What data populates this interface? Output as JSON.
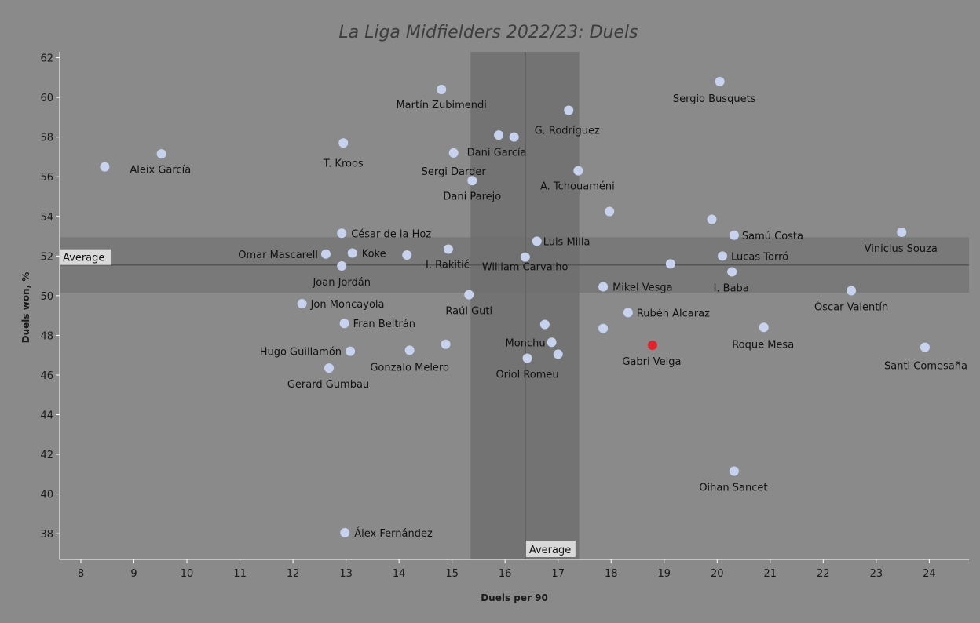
{
  "chart_data": {
    "type": "scatter",
    "title": "La Liga Midfielders 2022/23: Duels",
    "xlabel": "Duels per 90",
    "ylabel": "Duels won, %",
    "xlim": [
      7.6,
      24.75
    ],
    "ylim": [
      36.7,
      62.3
    ],
    "xticks": [
      8,
      9,
      10,
      11,
      12,
      13,
      14,
      15,
      16,
      17,
      18,
      19,
      20,
      21,
      22,
      23,
      24
    ],
    "yticks": [
      38,
      40,
      42,
      44,
      46,
      48,
      50,
      52,
      54,
      56,
      58,
      60,
      62
    ],
    "average_label": "Average",
    "average": {
      "x": 16.38,
      "y": 51.55
    },
    "x_band": [
      15.35,
      17.4
    ],
    "y_band": [
      50.15,
      52.95
    ],
    "colors": {
      "background": "#8a8a8a",
      "point": "#c7d3ee",
      "highlight": "#e8202a",
      "band": "#6e6e6e",
      "average_line": "#555555"
    },
    "points": [
      {
        "name": "Aleix García",
        "x": 8.45,
        "y": 56.5
      },
      {
        "name": "",
        "x": 9.52,
        "y": 57.15
      },
      {
        "name": "T. Kroos",
        "x": 12.95,
        "y": 57.7
      },
      {
        "name": "Martín Zubimendi",
        "x": 14.8,
        "y": 60.4
      },
      {
        "name": "Sergi Darder",
        "x": 15.03,
        "y": 57.2
      },
      {
        "name": "Dani Parejo",
        "x": 15.38,
        "y": 55.8
      },
      {
        "name": "",
        "x": 15.88,
        "y": 58.1
      },
      {
        "name": "Dani García",
        "x": 16.17,
        "y": 58.0
      },
      {
        "name": "G. Rodríguez",
        "x": 17.2,
        "y": 59.35
      },
      {
        "name": "A. Tchouaméni",
        "x": 17.38,
        "y": 56.3
      },
      {
        "name": "Sergio Busquets",
        "x": 20.05,
        "y": 60.8
      },
      {
        "name": "",
        "x": 17.97,
        "y": 54.25
      },
      {
        "name": "",
        "x": 19.9,
        "y": 53.85
      },
      {
        "name": "Samú Costa",
        "x": 20.32,
        "y": 53.05
      },
      {
        "name": "Vinicius Souza",
        "x": 23.48,
        "y": 53.2
      },
      {
        "name": "César de la Hoz",
        "x": 12.92,
        "y": 53.15
      },
      {
        "name": "Omar Mascarell",
        "x": 12.62,
        "y": 52.1
      },
      {
        "name": "Koke",
        "x": 13.12,
        "y": 52.15
      },
      {
        "name": "",
        "x": 14.15,
        "y": 52.05
      },
      {
        "name": "I. Rakitić",
        "x": 14.93,
        "y": 52.35
      },
      {
        "name": "Luis Milla",
        "x": 16.6,
        "y": 52.75
      },
      {
        "name": "William Carvalho",
        "x": 16.38,
        "y": 51.95
      },
      {
        "name": "Joan Jordán",
        "x": 12.92,
        "y": 51.5
      },
      {
        "name": "Lucas Torró",
        "x": 20.1,
        "y": 52.0
      },
      {
        "name": "",
        "x": 19.12,
        "y": 51.6
      },
      {
        "name": "I. Baba",
        "x": 20.28,
        "y": 51.2
      },
      {
        "name": "Mikel Vesga",
        "x": 17.85,
        "y": 50.45
      },
      {
        "name": "Óscar Valentín",
        "x": 22.53,
        "y": 50.25
      },
      {
        "name": "Raúl Guti",
        "x": 15.32,
        "y": 50.05
      },
      {
        "name": "Jon Moncayola",
        "x": 12.17,
        "y": 49.6
      },
      {
        "name": "Rubén Alcaraz",
        "x": 18.32,
        "y": 49.15
      },
      {
        "name": "Fran Beltrán",
        "x": 12.97,
        "y": 48.6
      },
      {
        "name": "",
        "x": 16.75,
        "y": 48.55
      },
      {
        "name": "",
        "x": 17.85,
        "y": 48.35
      },
      {
        "name": "Roque Mesa",
        "x": 20.88,
        "y": 48.4
      },
      {
        "name": "Monchu",
        "x": 16.88,
        "y": 47.65
      },
      {
        "name": "Gabri Veiga",
        "x": 18.78,
        "y": 47.5,
        "highlight": true
      },
      {
        "name": "Santi Comesaña",
        "x": 23.92,
        "y": 47.4
      },
      {
        "name": "Hugo Guillamón",
        "x": 13.08,
        "y": 47.2
      },
      {
        "name": "Gonzalo Melero",
        "x": 14.2,
        "y": 47.25
      },
      {
        "name": "",
        "x": 14.88,
        "y": 47.55
      },
      {
        "name": "",
        "x": 17.0,
        "y": 47.05
      },
      {
        "name": "Oriol Romeu",
        "x": 16.42,
        "y": 46.85
      },
      {
        "name": "Gerard Gumbau",
        "x": 12.68,
        "y": 46.35
      },
      {
        "name": "Oihan Sancet",
        "x": 20.32,
        "y": 41.15
      },
      {
        "name": "Álex Fernández",
        "x": 12.98,
        "y": 38.05
      }
    ]
  }
}
